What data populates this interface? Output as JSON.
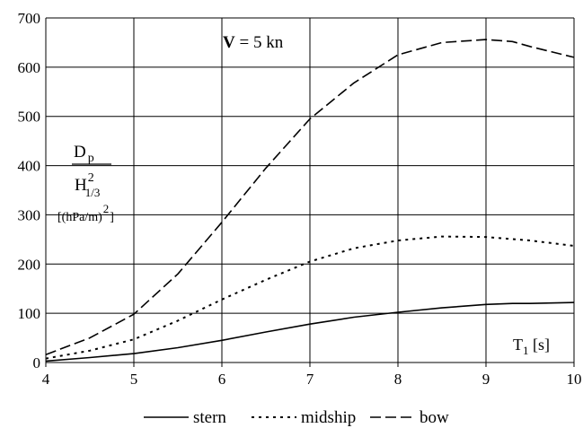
{
  "chart_data": {
    "type": "line",
    "title": "",
    "annotation": {
      "bold": "V",
      "rest": " = 5 kn"
    },
    "xlabel": {
      "main": "T",
      "sub": "1",
      "rest": " [s]"
    },
    "ylabel": {
      "numerator": {
        "main": "D",
        "sub": "p"
      },
      "denominator": {
        "main": "H",
        "sub": "1/3",
        "sup": "2"
      },
      "unit": {
        "main": "[(hPa/m)",
        "sup": "2",
        "end": "]"
      }
    },
    "xlim": [
      4,
      10
    ],
    "ylim": [
      0,
      700
    ],
    "xticks": [
      "4",
      "5",
      "6",
      "7",
      "8",
      "9",
      "10"
    ],
    "yticks": [
      "0",
      "100",
      "200",
      "300",
      "400",
      "500",
      "600",
      "700"
    ],
    "grid": true,
    "legend_position": "bottom",
    "series": [
      {
        "name": "stern",
        "style": "solid",
        "points": [
          [
            4,
            3
          ],
          [
            4.5,
            10
          ],
          [
            5,
            18
          ],
          [
            5.5,
            30
          ],
          [
            6,
            45
          ],
          [
            6.5,
            62
          ],
          [
            7,
            78
          ],
          [
            7.5,
            92
          ],
          [
            8,
            102
          ],
          [
            8.5,
            111
          ],
          [
            9,
            118
          ],
          [
            9.3,
            120
          ],
          [
            9.5,
            120
          ],
          [
            10,
            122
          ]
        ]
      },
      {
        "name": "midship",
        "style": "dotted",
        "points": [
          [
            4,
            8
          ],
          [
            4.5,
            24
          ],
          [
            5,
            47
          ],
          [
            5.5,
            85
          ],
          [
            6,
            128
          ],
          [
            6.5,
            168
          ],
          [
            7,
            205
          ],
          [
            7.5,
            232
          ],
          [
            8,
            248
          ],
          [
            8.5,
            256
          ],
          [
            9,
            255
          ],
          [
            9.5,
            248
          ],
          [
            10,
            237
          ]
        ]
      },
      {
        "name": "bow",
        "style": "dashed",
        "points": [
          [
            4,
            16
          ],
          [
            4.5,
            50
          ],
          [
            5,
            98
          ],
          [
            5.5,
            180
          ],
          [
            6,
            285
          ],
          [
            6.5,
            395
          ],
          [
            7,
            495
          ],
          [
            7.5,
            568
          ],
          [
            8,
            625
          ],
          [
            8.5,
            650
          ],
          [
            9,
            656
          ],
          [
            9.3,
            652
          ],
          [
            9.5,
            642
          ],
          [
            10,
            620
          ]
        ]
      }
    ]
  }
}
